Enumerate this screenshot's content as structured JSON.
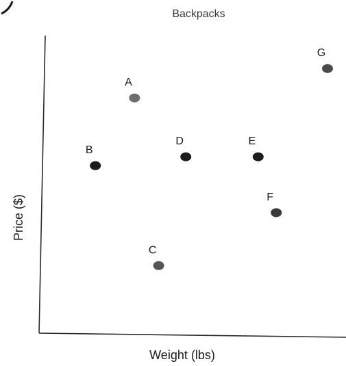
{
  "chart_data": {
    "type": "scatter",
    "title": "Backpacks",
    "xlabel": "Weight (lbs)",
    "ylabel": "Price ($)",
    "xlim": [
      0,
      10
    ],
    "ylim": [
      0,
      10
    ],
    "grid": false,
    "legend": "none",
    "points": [
      {
        "label": "A",
        "x": 3.1,
        "y": 7.6,
        "color": "#6e6e6e"
      },
      {
        "label": "B",
        "x": 1.8,
        "y": 5.3,
        "color": "#1c1c1c"
      },
      {
        "label": "C",
        "x": 3.9,
        "y": 1.9,
        "color": "#555555"
      },
      {
        "label": "D",
        "x": 4.8,
        "y": 5.6,
        "color": "#1c1c1c"
      },
      {
        "label": "E",
        "x": 7.2,
        "y": 5.6,
        "color": "#1c1c1c"
      },
      {
        "label": "F",
        "x": 7.8,
        "y": 3.7,
        "color": "#3a3a3a"
      },
      {
        "label": "G",
        "x": 9.5,
        "y": 8.6,
        "color": "#4a4a4a"
      }
    ]
  }
}
